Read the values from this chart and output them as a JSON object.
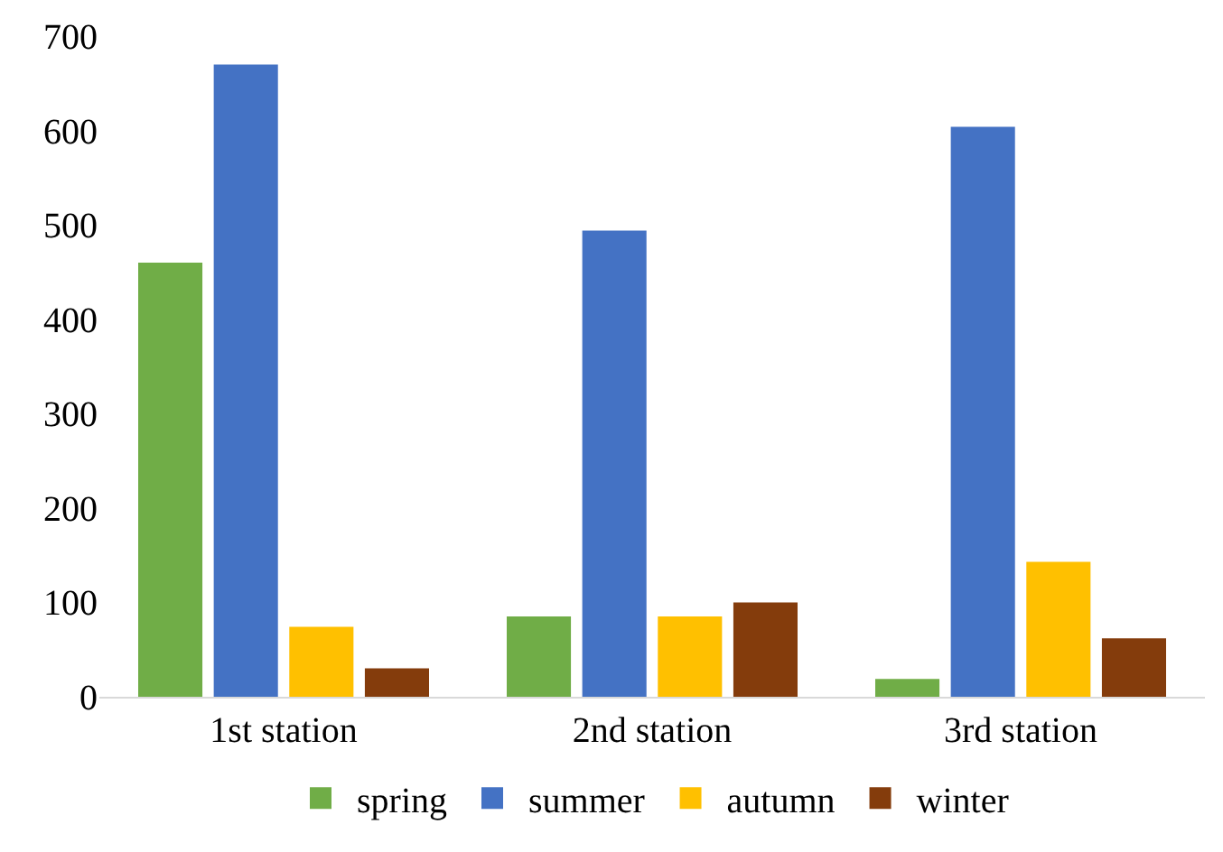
{
  "chart_data": {
    "type": "bar",
    "categories": [
      "1st station",
      "2nd station",
      "3rd station"
    ],
    "series": [
      {
        "name": "spring",
        "color": "#70ad47",
        "values": [
          460,
          85,
          19
        ]
      },
      {
        "name": "summer",
        "color": "#4472c4",
        "values": [
          670,
          494,
          604
        ]
      },
      {
        "name": "autumn",
        "color": "#ffc000",
        "values": [
          74,
          85,
          143
        ]
      },
      {
        "name": "winter",
        "color": "#843c0c",
        "values": [
          30,
          100,
          62
        ]
      }
    ],
    "ylim": [
      0,
      700
    ],
    "yticks": [
      0,
      100,
      200,
      300,
      400,
      500,
      600,
      700
    ],
    "legend": "bottom"
  }
}
